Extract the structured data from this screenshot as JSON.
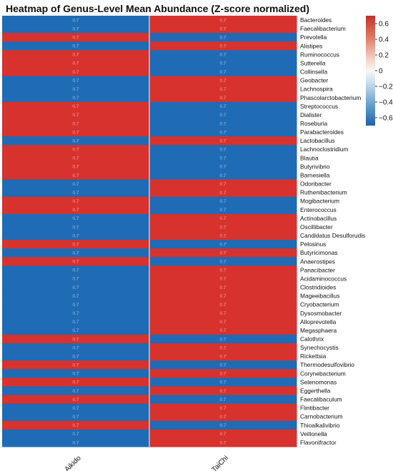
{
  "chart_data": {
    "type": "heatmap",
    "title": "Heatmap of Genus-Level Mean Abundance (Z-score normalized)",
    "columns": [
      "Aikido",
      "TaiChi"
    ],
    "rows": [
      "Bacteroides",
      "Faecalibacterium",
      "Prevotella",
      "Alistipes",
      "Ruminococcus",
      "Sutterella",
      "Collinsella",
      "Geobacter",
      "Lachnospira",
      "Phascolarctobacterium",
      "Streptococcus",
      "Dialister",
      "Roseburia",
      "Parabacteroides",
      "Lactobacillus",
      "Lachnoclostridium",
      "Blautia",
      "Butyrivibrio",
      "Barnesiella",
      "Odoribacter",
      "Ruthenibacterium",
      "Mogibacterium",
      "Enterococcus",
      "Actinobacillus",
      "Oscillibacter",
      "Candidatus Desulforudis",
      "Pelosinus",
      "Butyricimonas",
      "Anaerostipes",
      "Panacibacter",
      "Acidaminococcus",
      "Clostridioides",
      "Mageeibacillus",
      "Cryobacterium",
      "Dysosmobacter",
      "Alloprevotella",
      "Megasphaera",
      "Calothrix",
      "Synechocystis",
      "Rickettsia",
      "Thermodesulfovibrio",
      "Corynebacterium",
      "Selenomonas",
      "Eggerthella",
      "Faecalibaculum",
      "Flintibacter",
      "Carnobacterium",
      "Thioalkalivibrio",
      "Veillonella",
      "Flavonifractor"
    ],
    "values": [
      [
        -0.7,
        0.7
      ],
      [
        -0.7,
        0.7
      ],
      [
        0.7,
        -0.7
      ],
      [
        -0.7,
        0.7
      ],
      [
        0.7,
        -0.7
      ],
      [
        0.7,
        -0.7
      ],
      [
        0.7,
        -0.7
      ],
      [
        -0.7,
        0.7
      ],
      [
        -0.7,
        0.7
      ],
      [
        -0.7,
        0.7
      ],
      [
        0.7,
        -0.7
      ],
      [
        0.7,
        -0.7
      ],
      [
        0.7,
        -0.7
      ],
      [
        0.7,
        -0.7
      ],
      [
        -0.7,
        0.7
      ],
      [
        0.7,
        -0.7
      ],
      [
        0.7,
        -0.7
      ],
      [
        0.7,
        -0.7
      ],
      [
        0.7,
        -0.7
      ],
      [
        -0.7,
        0.7
      ],
      [
        -0.7,
        0.7
      ],
      [
        0.7,
        -0.7
      ],
      [
        0.7,
        -0.7
      ],
      [
        -0.7,
        0.7
      ],
      [
        -0.7,
        0.7
      ],
      [
        -0.7,
        0.7
      ],
      [
        0.7,
        -0.7
      ],
      [
        -0.7,
        0.7
      ],
      [
        0.7,
        -0.7
      ],
      [
        -0.7,
        0.7
      ],
      [
        -0.7,
        0.7
      ],
      [
        -0.7,
        0.7
      ],
      [
        -0.7,
        0.7
      ],
      [
        -0.7,
        0.7
      ],
      [
        -0.7,
        0.7
      ],
      [
        -0.7,
        0.7
      ],
      [
        -0.7,
        0.7
      ],
      [
        0.7,
        -0.7
      ],
      [
        -0.7,
        0.7
      ],
      [
        -0.7,
        0.7
      ],
      [
        0.7,
        -0.7
      ],
      [
        -0.7,
        0.7
      ],
      [
        0.7,
        -0.7
      ],
      [
        -0.7,
        0.7
      ],
      [
        0.7,
        -0.7
      ],
      [
        -0.7,
        0.7
      ],
      [
        -0.7,
        0.7
      ],
      [
        0.7,
        -0.7
      ],
      [
        -0.7,
        0.7
      ],
      [
        -0.7,
        0.7
      ]
    ],
    "cell_label_text": "0.7",
    "colorbar": {
      "ticks": [
        0.6,
        0.4,
        0.2,
        0.0,
        -0.2,
        -0.4,
        -0.6
      ],
      "tick_labels": [
        "0.6",
        "0.4",
        "0.2",
        "0",
        "−0.2",
        "−0.4",
        "−0.6"
      ],
      "range": [
        -0.7,
        0.7
      ]
    },
    "colormap": {
      "positive": "#d7322d",
      "zero": "#f7f7f7",
      "negative": "#1f6bb5"
    },
    "grid": false
  }
}
